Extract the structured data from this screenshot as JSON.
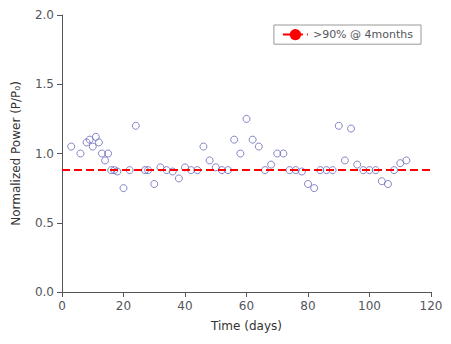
{
  "chart_data": {
    "type": "scatter",
    "xlabel": "Time (days)",
    "ylabel": "Normalized Power (P/P₀)",
    "series": [
      {
        "type": "scatter",
        "color": "#6666bb",
        "marker": "open circle",
        "x": [
          3,
          6,
          8,
          9,
          10,
          11,
          12,
          13,
          14,
          15,
          16,
          17,
          18,
          20,
          22,
          24,
          27,
          28,
          30,
          32,
          34,
          36,
          38,
          40,
          42,
          44,
          46,
          48,
          50,
          52,
          54,
          56,
          58,
          60,
          62,
          64,
          66,
          68,
          70,
          72,
          74,
          76,
          78,
          80,
          82,
          84,
          86,
          88,
          90,
          92,
          94,
          96,
          98,
          100,
          102,
          104,
          106,
          108,
          110,
          112
        ],
        "values": [
          1.05,
          1.0,
          1.08,
          1.1,
          1.05,
          1.12,
          1.08,
          1.0,
          0.95,
          1.0,
          0.88,
          0.88,
          0.87,
          0.75,
          0.88,
          1.2,
          0.88,
          0.88,
          0.78,
          0.9,
          0.88,
          0.87,
          0.82,
          0.9,
          0.88,
          0.88,
          1.05,
          0.95,
          0.9,
          0.88,
          0.88,
          1.1,
          1.0,
          1.25,
          1.1,
          1.05,
          0.88,
          0.92,
          1.0,
          1.0,
          0.88,
          0.88,
          0.87,
          0.78,
          0.75,
          0.88,
          0.88,
          0.88,
          1.2,
          0.95,
          1.18,
          0.92,
          0.88,
          0.88,
          0.88,
          0.8,
          0.78,
          0.88,
          0.93,
          0.95
        ]
      },
      {
        "type": "hline",
        "name": ">90% @ 4months",
        "color": "#ff0000",
        "line_style": "dashed",
        "values": [
          0.88
        ]
      }
    ],
    "xlim": [
      0,
      120
    ],
    "xticks": [
      0,
      20,
      40,
      60,
      80,
      100,
      120
    ],
    "ylim": [
      0,
      2
    ],
    "yticks": [
      {
        "value": 0,
        "label": "0.0"
      },
      0.5,
      {
        "value": 1,
        "label": "1.0"
      },
      1.5,
      {
        "value": 2,
        "label": "2.0"
      }
    ],
    "legend": "upper right",
    "grid": false
  }
}
